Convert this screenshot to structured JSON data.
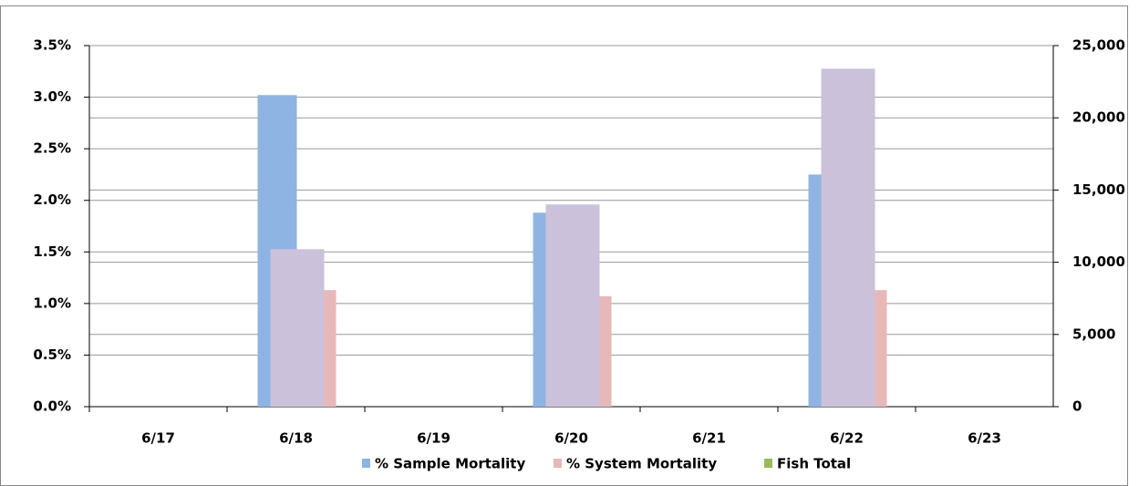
{
  "chart_data": {
    "type": "bar",
    "categories": [
      "6/17",
      "6/18",
      "6/19",
      "6/20",
      "6/21",
      "6/22",
      "6/23"
    ],
    "series": [
      {
        "name": "% Sample Mortality",
        "color": "#8eb4e3",
        "values": [
          null,
          3.02,
          null,
          1.88,
          null,
          2.25,
          null
        ]
      },
      {
        "name": "% System Mortality",
        "color": "#e6b9b8",
        "values": [
          null,
          1.13,
          null,
          1.07,
          null,
          1.13,
          null
        ]
      },
      {
        "name": "Fish Total",
        "color": "#ccc1da",
        "legend_color": "#9bbb59",
        "axis": "y2",
        "values": [
          null,
          10900,
          null,
          14000,
          null,
          23400,
          null
        ]
      }
    ],
    "ylim": [
      0,
      3.5
    ],
    "yticks": [
      {
        "value": 0,
        "label": "0.0%"
      },
      {
        "value": 0.5,
        "label": "0.5%"
      },
      {
        "value": 1,
        "label": "1.0%"
      },
      {
        "value": 1.5,
        "label": "1.5%"
      },
      {
        "value": 2,
        "label": "2.0%"
      },
      {
        "value": 2.5,
        "label": "2.5%"
      },
      {
        "value": 3,
        "label": "3.0%"
      },
      {
        "value": 3.5,
        "label": "3.5%"
      }
    ],
    "y2lim": [
      0,
      25000
    ],
    "y2ticks": [
      0,
      {
        "value": 5000,
        "label": "5,000"
      },
      {
        "value": 10000,
        "label": "10,000"
      },
      {
        "value": 15000,
        "label": "15,000"
      },
      {
        "value": 20000,
        "label": "20,000"
      },
      {
        "value": 25000,
        "label": "25,000"
      }
    ],
    "grid": true
  }
}
